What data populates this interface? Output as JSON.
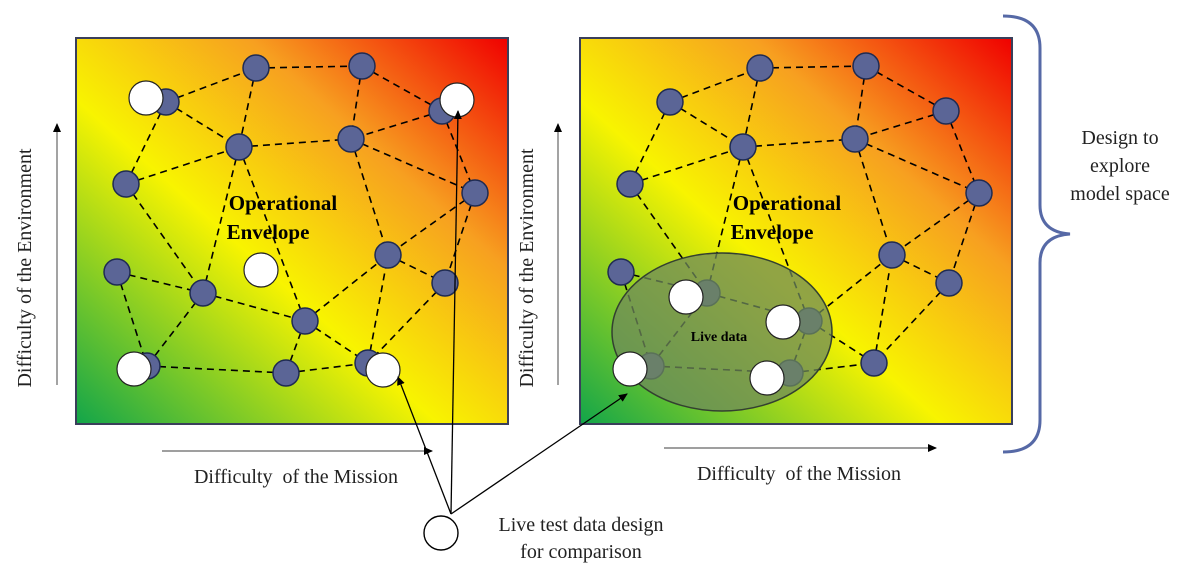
{
  "left_panel": {
    "title_line1": "Operational",
    "title_line2": "Envelope",
    "x_axis_label": "Difficulty  of the Mission",
    "y_axis_label": "Difficulty of the Environment"
  },
  "right_panel": {
    "title_line1": "Operational",
    "title_line2": "Envelope",
    "x_axis_label": "Difficulty  of the Mission",
    "y_axis_label": "Difficulty of the Environment",
    "live_region_label": "Live data"
  },
  "brace_annotation": {
    "line1": "Design to",
    "line2": "explore",
    "line3": "model space"
  },
  "legend": {
    "line1": "Live test data design",
    "line2": "for comparison"
  },
  "colors": {
    "node_fill": "#5b6596",
    "node_stroke": "#1f2b52",
    "live_point_fill": "#ffffff",
    "gradient_green": "#12a54a",
    "gradient_yellow": "#f8f400",
    "gradient_orange": "#f7a020",
    "gradient_red": "#f00000",
    "brace": "#5669a6",
    "live_region_fill": "#6f8a5b"
  }
}
